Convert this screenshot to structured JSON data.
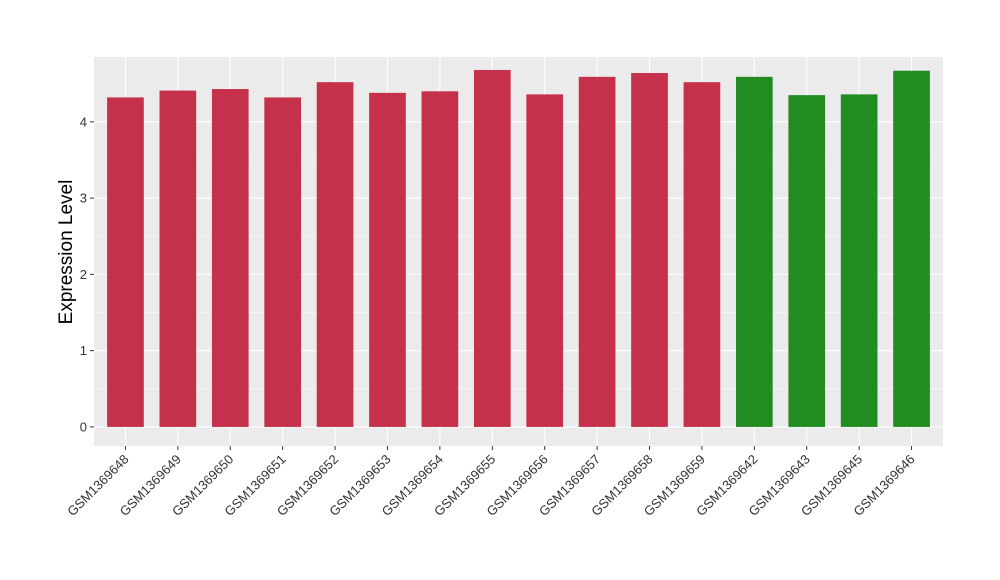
{
  "chart_data": {
    "type": "bar",
    "title": "",
    "xlabel": "",
    "ylabel": "Expression Level",
    "ylim": [
      -0.25,
      4.85
    ],
    "yticks": [
      0,
      1,
      2,
      3,
      4
    ],
    "grid": true,
    "categories": [
      "GSM1369648",
      "GSM1369649",
      "GSM1369650",
      "GSM1369651",
      "GSM1369652",
      "GSM1369653",
      "GSM1369654",
      "GSM1369655",
      "GSM1369656",
      "GSM1369657",
      "GSM1369658",
      "GSM1369659",
      "GSM1369642",
      "GSM1369643",
      "GSM1369645",
      "GSM1369646"
    ],
    "values": [
      4.32,
      4.41,
      4.43,
      4.32,
      4.52,
      4.38,
      4.4,
      4.68,
      4.36,
      4.59,
      4.64,
      4.52,
      4.59,
      4.35,
      4.36,
      4.67
    ],
    "bar_colors": [
      "#C5314A",
      "#C5314A",
      "#C5314A",
      "#C5314A",
      "#C5314A",
      "#C5314A",
      "#C5314A",
      "#C5314A",
      "#C5314A",
      "#C5314A",
      "#C5314A",
      "#C5314A",
      "#228B22",
      "#228B22",
      "#228B22",
      "#228B22"
    ],
    "panel_background": "#EBEBEB",
    "gridline_color": "#FFFFFF"
  }
}
